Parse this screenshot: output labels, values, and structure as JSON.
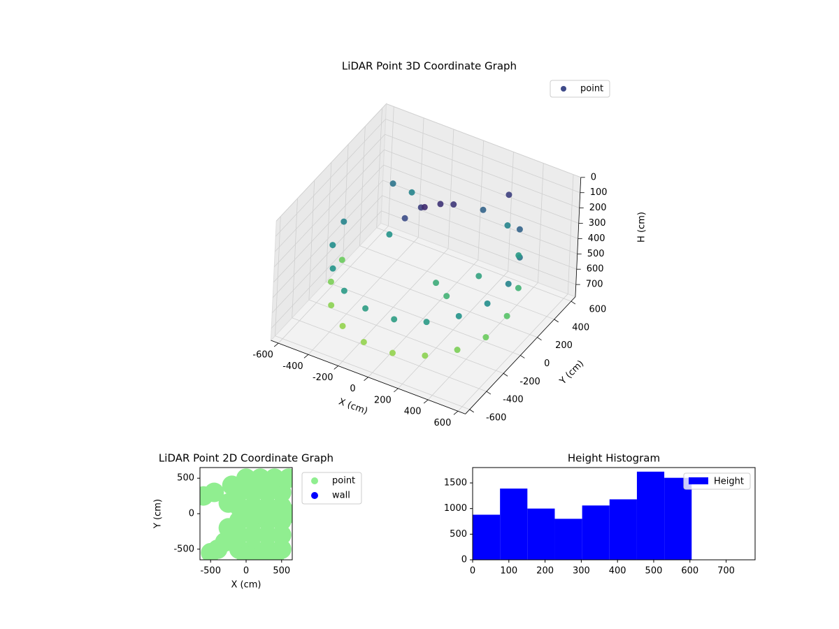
{
  "chart_data": [
    {
      "type": "scatter3d",
      "title": "LiDAR Point 3D Coordinate Graph",
      "x_label": "X (cm)",
      "y_label": "Y (cm)",
      "z_label": "H (cm)",
      "xlim": [
        -650,
        650
      ],
      "ylim": [
        -650,
        650
      ],
      "zlim": [
        0,
        780
      ],
      "z_inverted": true,
      "xticks": [
        -600,
        -400,
        -200,
        0,
        200,
        400,
        600
      ],
      "yticks": [
        -600,
        -400,
        -200,
        0,
        200,
        400,
        600
      ],
      "zticks": [
        0,
        100,
        200,
        300,
        400,
        500,
        600,
        700
      ],
      "colormap": "viridis",
      "legend": "upper right",
      "series": [
        {
          "name": "point",
          "color": "#3e4a89",
          "x": [
            -550,
            -517,
            -421,
            -275,
            -96,
            96,
            275,
            421,
            517,
            550,
            517,
            421,
            275,
            -550,
            -517,
            -421,
            -275,
            -96,
            96,
            275,
            421,
            517,
            550,
            517,
            421,
            275,
            -100,
            0,
            -50,
            60,
            -150,
            200,
            100,
            -300,
            300,
            150,
            -450,
            -350
          ],
          "y": [
            0,
            -188,
            -354,
            -476,
            -542,
            -542,
            -476,
            -354,
            -188,
            0,
            188,
            354,
            476,
            0,
            -188,
            -354,
            -476,
            -542,
            -542,
            -476,
            -354,
            -188,
            0,
            188,
            354,
            476,
            100,
            150,
            50,
            200,
            0,
            -100,
            -50,
            100,
            100,
            400,
            400,
            450
          ],
          "z": [
            350,
            380,
            400,
            420,
            430,
            430,
            420,
            400,
            380,
            350,
            300,
            250,
            150,
            600,
            620,
            640,
            650,
            650,
            650,
            640,
            620,
            600,
            560,
            500,
            420,
            350,
            150,
            120,
            100,
            130,
            180,
            500,
            480,
            400,
            450,
            250,
            300,
            350
          ]
        }
      ]
    },
    {
      "type": "scatter",
      "title": "LiDAR Point 2D Coordinate Graph",
      "x_label": "X (cm)",
      "y_label": "Y (cm)",
      "xlim": [
        -650,
        650
      ],
      "ylim": [
        -650,
        650
      ],
      "xticks": [
        -500,
        0,
        500
      ],
      "yticks": [
        -500,
        0,
        500
      ],
      "legend": "outside right",
      "series": [
        {
          "name": "point",
          "color": "#90ee90",
          "x": [
            -100,
            100,
            300,
            500,
            -100,
            100,
            300,
            500,
            -100,
            100,
            300,
            500,
            -100,
            100,
            300,
            500,
            -100,
            100,
            300,
            500,
            0,
            200,
            400,
            600,
            0,
            200,
            400,
            -250,
            -300,
            -400,
            -500,
            -600,
            -450,
            -200,
            -250,
            0,
            200,
            400,
            600
          ],
          "y": [
            -500,
            -500,
            -500,
            -500,
            -300,
            -300,
            -300,
            -300,
            -100,
            -100,
            -100,
            -100,
            100,
            100,
            100,
            100,
            300,
            300,
            300,
            300,
            500,
            500,
            500,
            500,
            -600,
            -600,
            -600,
            -200,
            -400,
            -500,
            -550,
            250,
            300,
            400,
            150,
            0,
            0,
            0,
            0
          ]
        },
        {
          "name": "wall",
          "color": "#0000ff",
          "x": [],
          "y": []
        }
      ]
    },
    {
      "type": "histogram",
      "title": "Height Histogram",
      "bins": [
        0,
        75.6,
        151.2,
        226.8,
        302.4,
        378,
        453.6,
        529.2,
        604.8
      ],
      "series": [
        {
          "name": "Height",
          "color": "#0000ff",
          "values": [
            880,
            1390,
            1000,
            800,
            1060,
            1180,
            1720,
            1600
          ]
        }
      ],
      "xlim": [
        0,
        780
      ],
      "ylim": [
        0,
        1800
      ],
      "xticks": [
        0,
        100,
        200,
        300,
        400,
        500,
        600,
        700
      ],
      "yticks": [
        0,
        500,
        1000,
        1500
      ],
      "legend": "upper right"
    }
  ]
}
